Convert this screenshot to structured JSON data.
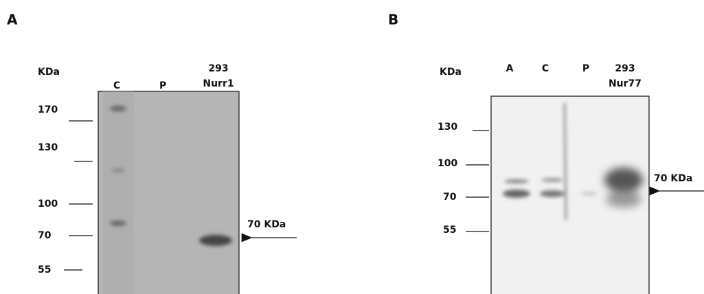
{
  "panels": [
    {
      "label": "A",
      "unit": "KDa",
      "lanes": [
        "C",
        "P",
        "293",
        "Nurr1"
      ],
      "markers": [
        "170",
        "130",
        "100",
        "70",
        "55"
      ],
      "annotation": "70 KDa"
    },
    {
      "label": "B",
      "unit": "KDa",
      "lanes": [
        "A",
        "C",
        "P",
        "293",
        "Nur77"
      ],
      "markers": [
        "130",
        "100",
        "70",
        "55"
      ],
      "annotation": "70 KDa"
    }
  ]
}
